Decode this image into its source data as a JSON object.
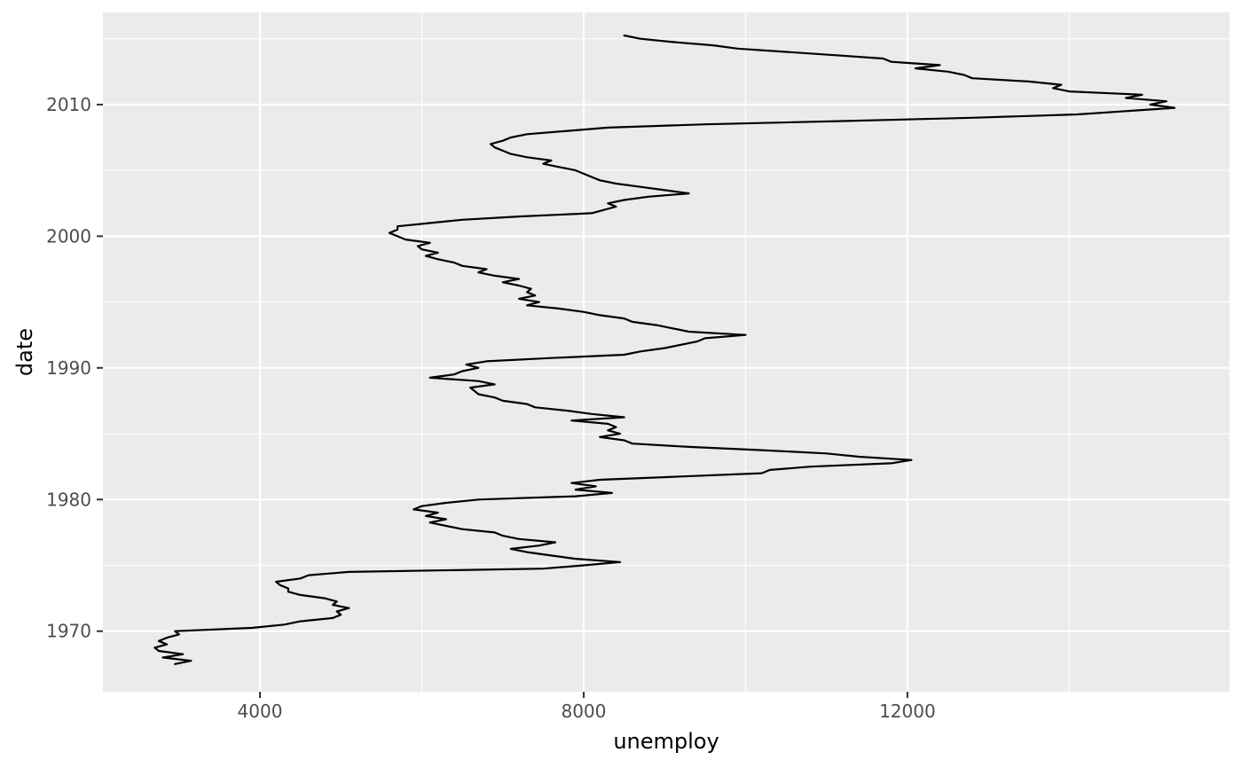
{
  "chart_data": {
    "type": "line",
    "xlabel": "unemploy",
    "ylabel": "date",
    "x_ticks": [
      4000,
      8000,
      12000
    ],
    "x_tick_labels": [
      "4000",
      "8000",
      "12000"
    ],
    "y_ticks": [
      1970,
      1980,
      1990,
      2000,
      2010
    ],
    "y_tick_labels": [
      "1970",
      "1980",
      "1990",
      "2000",
      "2010"
    ],
    "xlim": [
      2060,
      15980
    ],
    "ylim": [
      1965.4,
      2017.0
    ],
    "grid": true,
    "panel_background": "#ebebeb",
    "grid_color": "#ffffff",
    "line_color": "#000000",
    "series": [
      {
        "points": [
          [
            1967.5,
            2950
          ],
          [
            1967.75,
            3150
          ],
          [
            1968.0,
            2800
          ],
          [
            1968.25,
            3050
          ],
          [
            1968.5,
            2750
          ],
          [
            1968.75,
            2700
          ],
          [
            1969.0,
            2850
          ],
          [
            1969.25,
            2750
          ],
          [
            1969.5,
            2850
          ],
          [
            1969.75,
            3000
          ],
          [
            1970.0,
            2950
          ],
          [
            1970.25,
            3900
          ],
          [
            1970.5,
            4300
          ],
          [
            1970.75,
            4500
          ],
          [
            1971.0,
            4900
          ],
          [
            1971.25,
            5000
          ],
          [
            1971.5,
            4950
          ],
          [
            1971.75,
            5100
          ],
          [
            1972.0,
            4900
          ],
          [
            1972.25,
            4950
          ],
          [
            1972.5,
            4800
          ],
          [
            1972.75,
            4500
          ],
          [
            1973.0,
            4350
          ],
          [
            1973.25,
            4350
          ],
          [
            1973.5,
            4250
          ],
          [
            1973.75,
            4200
          ],
          [
            1974.0,
            4500
          ],
          [
            1974.25,
            4600
          ],
          [
            1974.5,
            5100
          ],
          [
            1974.75,
            7500
          ],
          [
            1975.0,
            8000
          ],
          [
            1975.25,
            8450
          ],
          [
            1975.5,
            7900
          ],
          [
            1975.75,
            7600
          ],
          [
            1976.0,
            7300
          ],
          [
            1976.25,
            7100
          ],
          [
            1976.5,
            7450
          ],
          [
            1976.75,
            7650
          ],
          [
            1977.0,
            7200
          ],
          [
            1977.25,
            7000
          ],
          [
            1977.5,
            6900
          ],
          [
            1977.75,
            6500
          ],
          [
            1978.0,
            6300
          ],
          [
            1978.25,
            6100
          ],
          [
            1978.5,
            6300
          ],
          [
            1978.75,
            6050
          ],
          [
            1979.0,
            6200
          ],
          [
            1979.25,
            5900
          ],
          [
            1979.5,
            6000
          ],
          [
            1979.75,
            6300
          ],
          [
            1980.0,
            6700
          ],
          [
            1980.25,
            7900
          ],
          [
            1980.5,
            8350
          ],
          [
            1980.75,
            7900
          ],
          [
            1981.0,
            8150
          ],
          [
            1981.25,
            7850
          ],
          [
            1981.5,
            8200
          ],
          [
            1981.75,
            9200
          ],
          [
            1982.0,
            10200
          ],
          [
            1982.25,
            10300
          ],
          [
            1982.5,
            10800
          ],
          [
            1982.75,
            11800
          ],
          [
            1983.0,
            12050
          ],
          [
            1983.25,
            11400
          ],
          [
            1983.5,
            11000
          ],
          [
            1983.75,
            10200
          ],
          [
            1984.0,
            9300
          ],
          [
            1984.25,
            8600
          ],
          [
            1984.5,
            8500
          ],
          [
            1984.75,
            8200
          ],
          [
            1985.0,
            8450
          ],
          [
            1985.25,
            8300
          ],
          [
            1985.5,
            8400
          ],
          [
            1985.75,
            8300
          ],
          [
            1986.0,
            7850
          ],
          [
            1986.25,
            8500
          ],
          [
            1986.5,
            8100
          ],
          [
            1986.75,
            7800
          ],
          [
            1987.0,
            7400
          ],
          [
            1987.25,
            7300
          ],
          [
            1987.5,
            7000
          ],
          [
            1987.75,
            6900
          ],
          [
            1988.0,
            6700
          ],
          [
            1988.25,
            6650
          ],
          [
            1988.5,
            6600
          ],
          [
            1988.75,
            6900
          ],
          [
            1989.0,
            6700
          ],
          [
            1989.25,
            6100
          ],
          [
            1989.5,
            6400
          ],
          [
            1989.75,
            6500
          ],
          [
            1990.0,
            6700
          ],
          [
            1990.25,
            6550
          ],
          [
            1990.5,
            6800
          ],
          [
            1990.75,
            7600
          ],
          [
            1991.0,
            8500
          ],
          [
            1991.25,
            8700
          ],
          [
            1991.5,
            9000
          ],
          [
            1991.75,
            9200
          ],
          [
            1992.0,
            9400
          ],
          [
            1992.25,
            9500
          ],
          [
            1992.5,
            10000
          ],
          [
            1992.75,
            9300
          ],
          [
            1993.0,
            9100
          ],
          [
            1993.25,
            8900
          ],
          [
            1993.5,
            8600
          ],
          [
            1993.75,
            8500
          ],
          [
            1994.0,
            8200
          ],
          [
            1994.25,
            8000
          ],
          [
            1994.5,
            7700
          ],
          [
            1994.75,
            7300
          ],
          [
            1995.0,
            7450
          ],
          [
            1995.25,
            7200
          ],
          [
            1995.5,
            7400
          ],
          [
            1995.75,
            7300
          ],
          [
            1996.0,
            7350
          ],
          [
            1996.25,
            7200
          ],
          [
            1996.5,
            7000
          ],
          [
            1996.75,
            7200
          ],
          [
            1997.0,
            6900
          ],
          [
            1997.25,
            6700
          ],
          [
            1997.5,
            6800
          ],
          [
            1997.75,
            6500
          ],
          [
            1998.0,
            6400
          ],
          [
            1998.25,
            6200
          ],
          [
            1998.5,
            6050
          ],
          [
            1998.75,
            6200
          ],
          [
            1999.0,
            6000
          ],
          [
            1999.25,
            5950
          ],
          [
            1999.5,
            6100
          ],
          [
            1999.75,
            5800
          ],
          [
            2000.0,
            5700
          ],
          [
            2000.25,
            5600
          ],
          [
            2000.5,
            5700
          ],
          [
            2000.75,
            5700
          ],
          [
            2001.0,
            6100
          ],
          [
            2001.25,
            6500
          ],
          [
            2001.5,
            7200
          ],
          [
            2001.75,
            8100
          ],
          [
            2002.0,
            8250
          ],
          [
            2002.25,
            8400
          ],
          [
            2002.5,
            8300
          ],
          [
            2002.75,
            8500
          ],
          [
            2003.0,
            8800
          ],
          [
            2003.25,
            9300
          ],
          [
            2003.5,
            9000
          ],
          [
            2003.75,
            8700
          ],
          [
            2004.0,
            8400
          ],
          [
            2004.25,
            8200
          ],
          [
            2004.5,
            8100
          ],
          [
            2004.75,
            8000
          ],
          [
            2005.0,
            7900
          ],
          [
            2005.25,
            7700
          ],
          [
            2005.5,
            7500
          ],
          [
            2005.75,
            7600
          ],
          [
            2006.0,
            7300
          ],
          [
            2006.25,
            7100
          ],
          [
            2006.5,
            7000
          ],
          [
            2006.75,
            6900
          ],
          [
            2007.0,
            6850
          ],
          [
            2007.25,
            7000
          ],
          [
            2007.5,
            7100
          ],
          [
            2007.75,
            7300
          ],
          [
            2008.0,
            7800
          ],
          [
            2008.25,
            8300
          ],
          [
            2008.5,
            9500
          ],
          [
            2008.75,
            11200
          ],
          [
            2009.0,
            12800
          ],
          [
            2009.25,
            14100
          ],
          [
            2009.5,
            14700
          ],
          [
            2009.75,
            15300
          ],
          [
            2010.0,
            15000
          ],
          [
            2010.25,
            15200
          ],
          [
            2010.5,
            14700
          ],
          [
            2010.75,
            14900
          ],
          [
            2011.0,
            14000
          ],
          [
            2011.25,
            13800
          ],
          [
            2011.5,
            13900
          ],
          [
            2011.75,
            13500
          ],
          [
            2012.0,
            12800
          ],
          [
            2012.25,
            12700
          ],
          [
            2012.5,
            12500
          ],
          [
            2012.75,
            12100
          ],
          [
            2013.0,
            12400
          ],
          [
            2013.25,
            11800
          ],
          [
            2013.5,
            11700
          ],
          [
            2013.75,
            11100
          ],
          [
            2014.0,
            10500
          ],
          [
            2014.25,
            9900
          ],
          [
            2014.5,
            9600
          ],
          [
            2014.75,
            9100
          ],
          [
            2015.0,
            8700
          ],
          [
            2015.25,
            8500
          ]
        ]
      }
    ]
  }
}
